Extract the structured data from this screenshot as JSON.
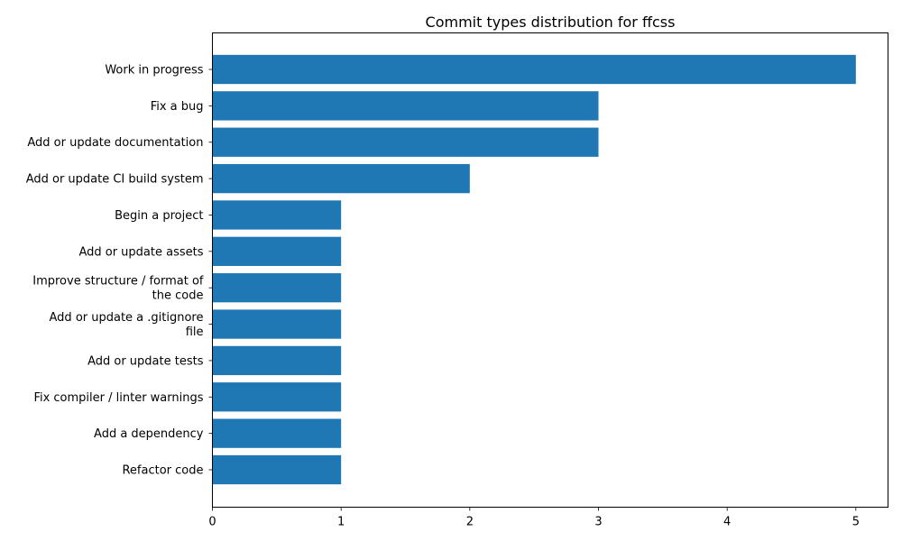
{
  "chart_data": {
    "type": "bar",
    "orientation": "horizontal",
    "title": "Commit types distribution for ffcss",
    "xlabel": "",
    "ylabel": "",
    "categories": [
      "Work in progress",
      "Fix a bug",
      "Add or update documentation",
      "Add or update CI build system",
      "Begin a project",
      "Add or update assets",
      "Improve structure / format of the code",
      "Add or update a .gitignore file",
      "Add or update tests",
      "Fix compiler / linter warnings",
      "Add a dependency",
      "Refactor code"
    ],
    "category_label_lines": [
      [
        "Work in progress"
      ],
      [
        "Fix a bug"
      ],
      [
        "Add or update documentation"
      ],
      [
        "Add or update CI build system"
      ],
      [
        "Begin a project"
      ],
      [
        "Add or update assets"
      ],
      [
        "Improve structure / format of",
        "the code"
      ],
      [
        "Add or update a .gitignore",
        "file"
      ],
      [
        "Add or update tests"
      ],
      [
        "Fix compiler / linter warnings"
      ],
      [
        "Add a dependency"
      ],
      [
        "Refactor code"
      ]
    ],
    "values": [
      5,
      3,
      3,
      2,
      1,
      1,
      1,
      1,
      1,
      1,
      1,
      1
    ],
    "xlim": [
      0,
      5.25
    ],
    "xticks": [
      0,
      1,
      2,
      3,
      4,
      5
    ],
    "grid": false,
    "bar_color": "#1f77b4"
  }
}
